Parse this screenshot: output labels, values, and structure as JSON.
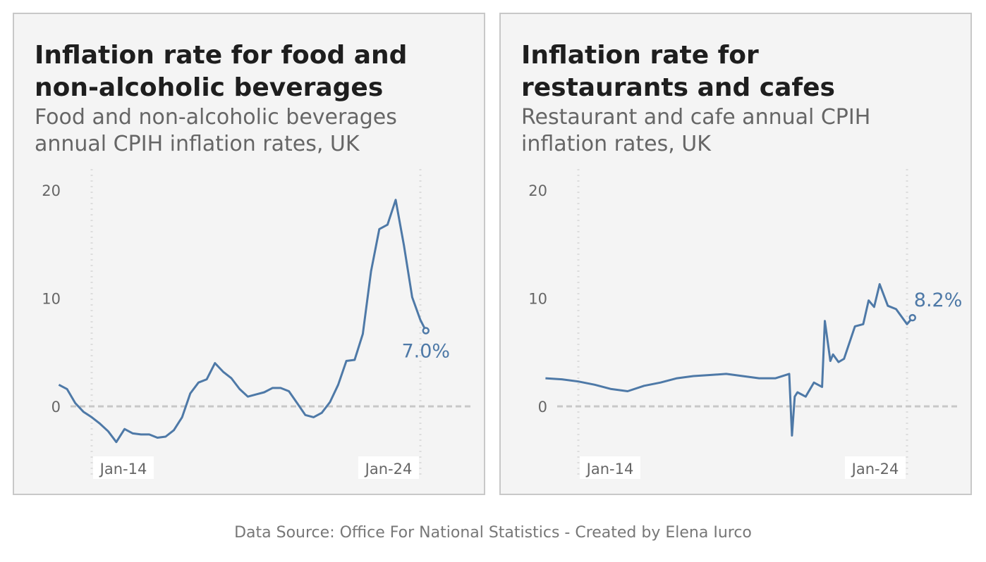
{
  "colors": {
    "line": "#4e79a7",
    "panel_bg": "#f4f4f4",
    "zero_line": "#c8c8c8",
    "ref_line": "#dddddd"
  },
  "footer": "Data Source: Office For National Statistics - Created by Elena Iurco",
  "chart_data": [
    {
      "type": "line",
      "title": "Inflation rate for food and\nnon-alcoholic beverages",
      "subtitle": "Food and non-alcoholic beverages\nannual CPIH inflation rates, UK",
      "yticks": [
        0,
        10,
        20
      ],
      "ylim": [
        -6,
        22
      ],
      "xlim": [
        "2013-01",
        "2024-04"
      ],
      "xticks": [
        "Jan-14",
        "Jan-24"
      ],
      "xtick_dates": [
        "2014-01",
        "2024-01"
      ],
      "grid": false,
      "end_label": "7.0%",
      "series": [
        {
          "x": [
            "2013-01",
            "2013-04",
            "2013-07",
            "2013-10",
            "2014-01",
            "2014-04",
            "2014-07",
            "2014-10",
            "2015-01",
            "2015-04",
            "2015-07",
            "2015-10",
            "2016-01",
            "2016-04",
            "2016-07",
            "2016-10",
            "2017-01",
            "2017-04",
            "2017-07",
            "2017-10",
            "2018-01",
            "2018-04",
            "2018-07",
            "2018-10",
            "2019-01",
            "2019-04",
            "2019-07",
            "2019-10",
            "2020-01",
            "2020-04",
            "2020-07",
            "2020-10",
            "2021-01",
            "2021-04",
            "2021-07",
            "2021-10",
            "2022-01",
            "2022-04",
            "2022-07",
            "2022-10",
            "2023-01",
            "2023-04",
            "2023-07",
            "2023-10",
            "2024-01",
            "2024-03"
          ],
          "y": [
            2.0,
            1.6,
            0.3,
            -0.5,
            -1.0,
            -1.6,
            -2.3,
            -3.3,
            -2.1,
            -2.5,
            -2.6,
            -2.6,
            -2.9,
            -2.8,
            -2.2,
            -1.0,
            1.2,
            2.2,
            2.5,
            4.0,
            3.2,
            2.6,
            1.6,
            0.9,
            1.1,
            1.3,
            1.7,
            1.7,
            1.4,
            0.3,
            -0.8,
            -1.0,
            -0.6,
            0.4,
            2.0,
            4.2,
            4.3,
            6.7,
            12.5,
            16.4,
            16.8,
            19.1,
            14.9,
            10.1,
            8.0,
            7.0
          ]
        }
      ]
    },
    {
      "type": "line",
      "title": "Inflation rate for\nrestaurants and cafes",
      "subtitle": "Restaurant and cafe annual CPIH\ninflation rates, UK",
      "yticks": [
        0,
        10,
        20
      ],
      "ylim": [
        -6,
        22
      ],
      "xlim": [
        "2013-01",
        "2024-04"
      ],
      "xticks": [
        "Jan-14",
        "Jan-24"
      ],
      "xtick_dates": [
        "2014-01",
        "2024-01"
      ],
      "grid": false,
      "end_label": "8.2%",
      "series": [
        {
          "x": [
            "2013-01",
            "2013-07",
            "2014-01",
            "2014-07",
            "2015-01",
            "2015-07",
            "2016-01",
            "2016-07",
            "2017-01",
            "2017-07",
            "2018-01",
            "2018-07",
            "2019-01",
            "2019-07",
            "2020-01",
            "2020-06",
            "2020-07",
            "2020-08",
            "2020-09",
            "2020-12",
            "2021-03",
            "2021-06",
            "2021-07",
            "2021-09",
            "2021-10",
            "2021-12",
            "2022-02",
            "2022-06",
            "2022-09",
            "2022-11",
            "2023-01",
            "2023-03",
            "2023-06",
            "2023-09",
            "2024-01",
            "2024-03"
          ],
          "y": [
            2.6,
            2.5,
            2.3,
            2.0,
            1.6,
            1.4,
            1.9,
            2.2,
            2.6,
            2.8,
            2.9,
            3.0,
            2.8,
            2.6,
            2.6,
            3.0,
            -2.7,
            0.9,
            1.3,
            0.9,
            2.2,
            1.8,
            7.9,
            4.2,
            4.8,
            4.1,
            4.4,
            7.4,
            7.6,
            9.8,
            9.2,
            11.3,
            9.3,
            9.0,
            7.6,
            8.2
          ]
        }
      ]
    }
  ]
}
